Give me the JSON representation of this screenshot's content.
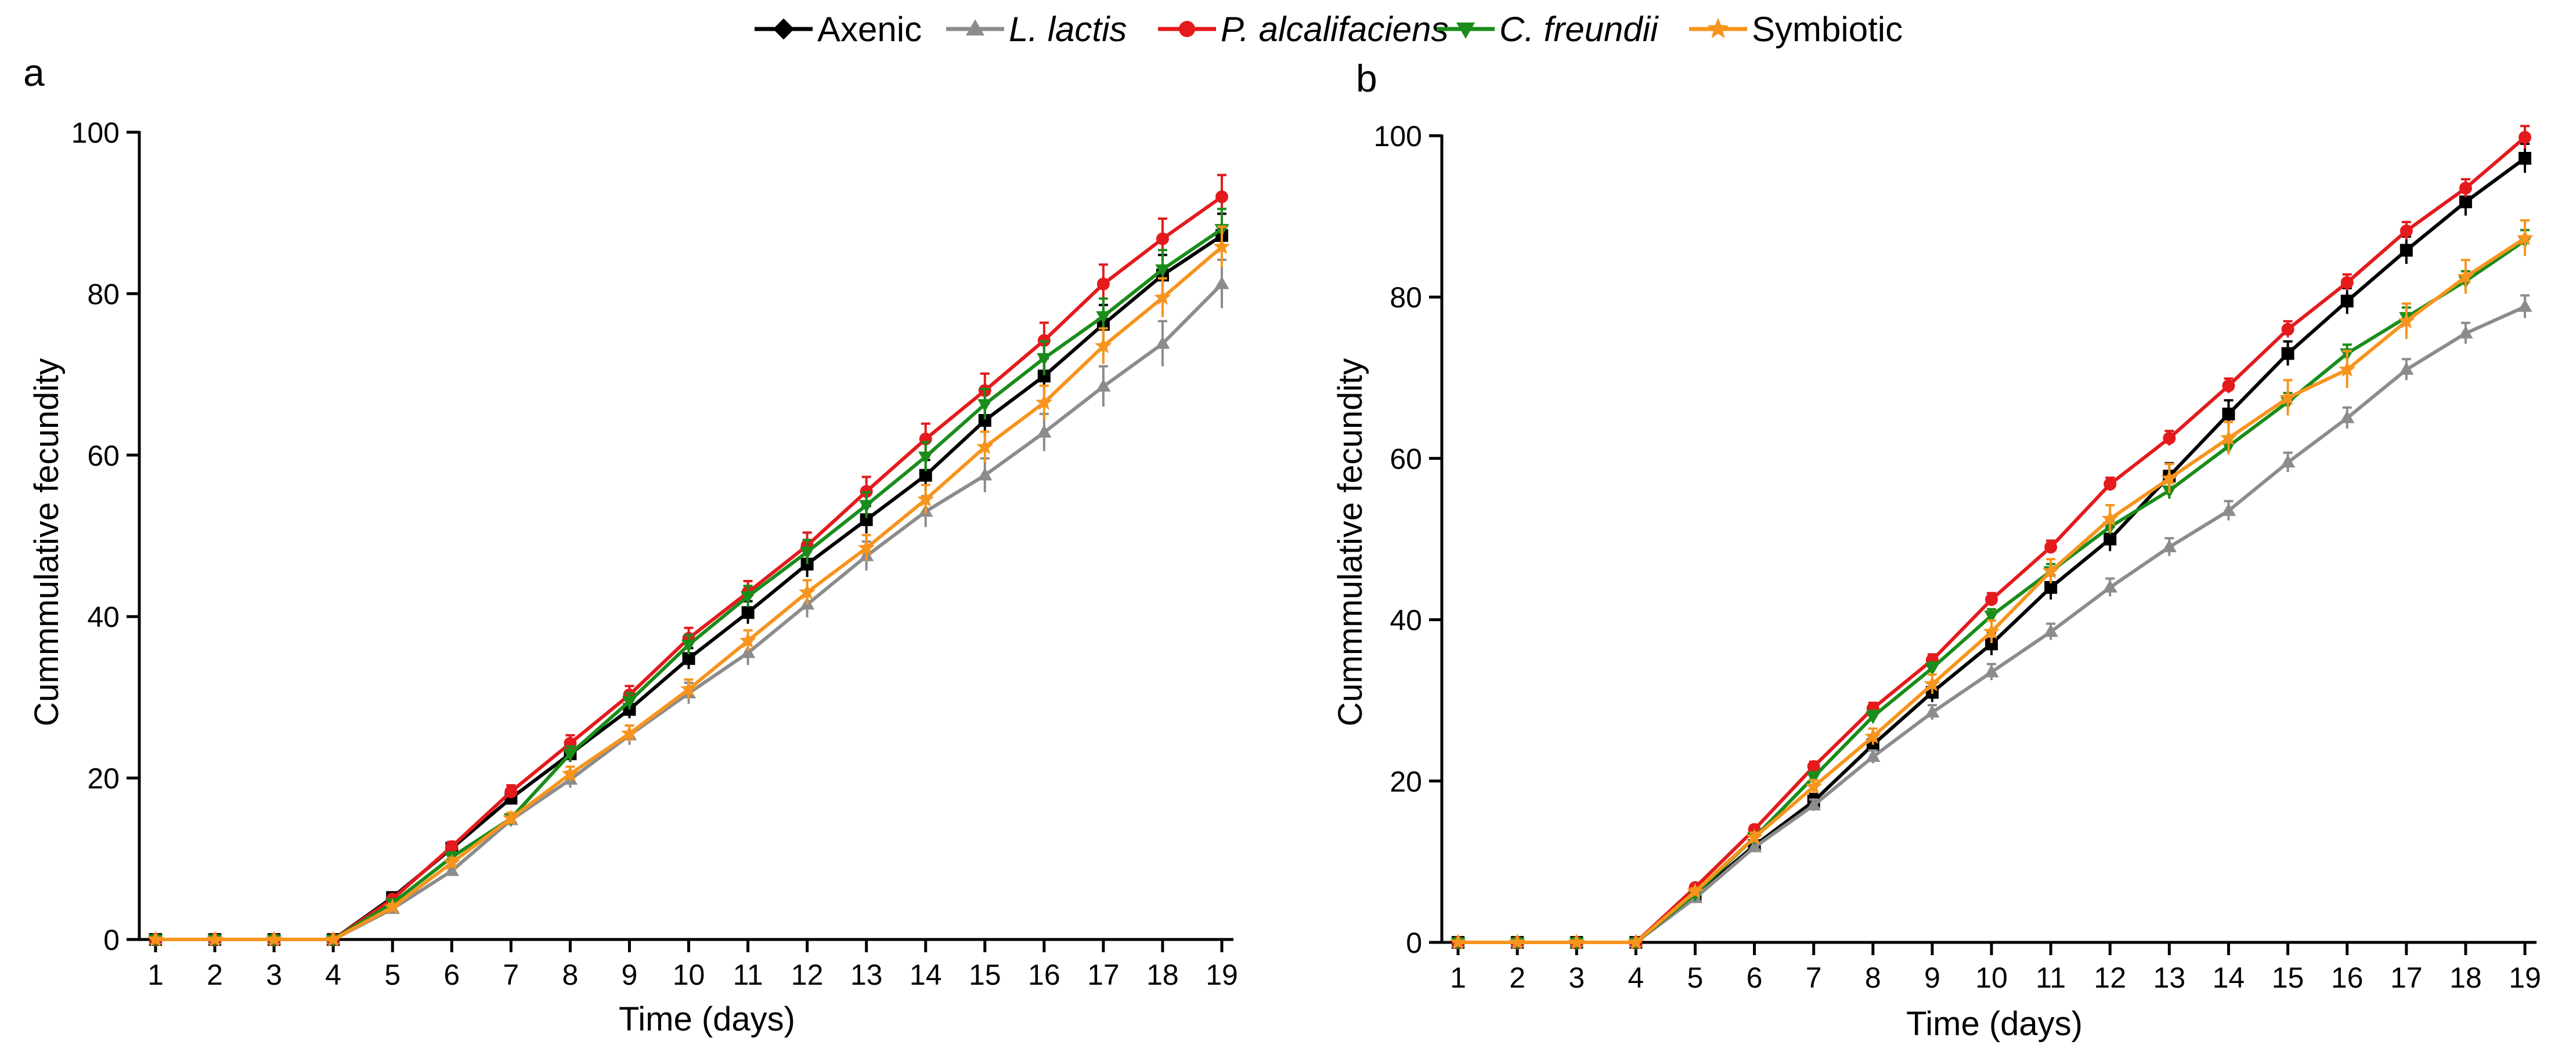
{
  "legend": [
    {
      "label": "Axenic",
      "italic": false
    },
    {
      "label": "L. lactis",
      "italic": true
    },
    {
      "label": "P. alcalifaciens",
      "italic": true
    },
    {
      "label": "C. freundii",
      "italic": true
    },
    {
      "label": "Symbiotic",
      "italic": false
    }
  ],
  "chart_data": [
    {
      "type": "line",
      "panel": "a",
      "xlabel": "Time (days)",
      "ylabel": "Cummmulative fecundity",
      "x": [
        1,
        2,
        3,
        4,
        5,
        6,
        7,
        8,
        9,
        10,
        11,
        12,
        13,
        14,
        15,
        16,
        17,
        18,
        19
      ],
      "xlim": [
        1,
        19
      ],
      "ylim": [
        0,
        100
      ],
      "yticks": [
        0,
        20,
        40,
        60,
        80,
        100
      ],
      "grid": false,
      "legend_position": "top-center",
      "series": [
        {
          "name": "Axenic",
          "color": "#000000",
          "marker": "square",
          "values": [
            0,
            0,
            0,
            0,
            5.2,
            11.3,
            17.5,
            23.0,
            28.5,
            34.8,
            40.5,
            46.5,
            52.0,
            57.5,
            64.3,
            69.8,
            76.2,
            82.3,
            87.2
          ],
          "errors": [
            0,
            0,
            0,
            0,
            0.4,
            0.6,
            0.8,
            1.0,
            1.1,
            1.3,
            1.4,
            1.6,
            1.7,
            1.9,
            2.1,
            2.2,
            2.4,
            2.5,
            2.7
          ]
        },
        {
          "name": "L. lactis",
          "color": "#8c8c8c",
          "marker": "triangle-up",
          "values": [
            0,
            0,
            0,
            0,
            3.8,
            8.5,
            14.8,
            19.8,
            25.3,
            30.5,
            35.5,
            41.5,
            47.5,
            53.0,
            57.5,
            62.8,
            68.5,
            73.8,
            81.2
          ],
          "errors": [
            0,
            0,
            0,
            0,
            0.4,
            0.6,
            0.8,
            1.0,
            1.2,
            1.3,
            1.5,
            1.6,
            1.8,
            1.9,
            2.1,
            2.3,
            2.5,
            2.8,
            3.0
          ]
        },
        {
          "name": "P. alcalifaciens",
          "color": "#e41a1c",
          "marker": "circle",
          "values": [
            0,
            0,
            0,
            0,
            5.0,
            11.5,
            18.3,
            24.3,
            30.3,
            37.3,
            43.0,
            48.8,
            55.5,
            62.0,
            68.0,
            74.2,
            81.2,
            86.8,
            92.0
          ],
          "errors": [
            0,
            0,
            0,
            0,
            0.4,
            0.6,
            0.8,
            1.0,
            1.1,
            1.3,
            1.4,
            1.6,
            1.8,
            1.9,
            2.1,
            2.2,
            2.4,
            2.5,
            2.7
          ]
        },
        {
          "name": "C. freundii",
          "color": "#1a8c1a",
          "marker": "triangle-down",
          "values": [
            0,
            0,
            0,
            0,
            4.5,
            10.2,
            15.0,
            23.0,
            29.5,
            36.5,
            42.5,
            48.0,
            53.8,
            59.8,
            66.3,
            72.0,
            77.2,
            83.0,
            88.0
          ],
          "errors": [
            0,
            0,
            0,
            0,
            0.4,
            0.6,
            0.7,
            0.9,
            1.0,
            1.2,
            1.3,
            1.5,
            1.6,
            1.8,
            1.9,
            2.1,
            2.2,
            2.4,
            2.5
          ]
        },
        {
          "name": "Symbiotic",
          "color": "#f7941d",
          "marker": "star",
          "values": [
            0,
            0,
            0,
            0,
            4.0,
            9.5,
            15.0,
            20.5,
            25.5,
            31.0,
            37.0,
            43.0,
            48.5,
            54.5,
            61.0,
            66.5,
            73.5,
            79.5,
            85.8
          ],
          "errors": [
            0,
            0,
            0,
            0,
            0.4,
            0.6,
            0.7,
            0.9,
            1.0,
            1.2,
            1.3,
            1.5,
            1.6,
            1.8,
            1.9,
            2.1,
            2.2,
            2.4,
            2.5
          ]
        }
      ]
    },
    {
      "type": "line",
      "panel": "b",
      "xlabel": "Time (days)",
      "ylabel": "Cummmulative fecundity",
      "x": [
        1,
        2,
        3,
        4,
        5,
        6,
        7,
        8,
        9,
        10,
        11,
        12,
        13,
        14,
        15,
        16,
        17,
        18,
        19
      ],
      "xlim": [
        1,
        19
      ],
      "ylim": [
        0,
        100
      ],
      "yticks": [
        0,
        20,
        40,
        60,
        80,
        100
      ],
      "grid": false,
      "legend_position": "top-center",
      "series": [
        {
          "name": "Axenic",
          "color": "#000000",
          "marker": "square",
          "values": [
            0,
            0,
            0,
            0,
            5.8,
            12.0,
            17.5,
            24.5,
            31.0,
            37.0,
            44.0,
            50.0,
            57.8,
            65.5,
            73.0,
            79.5,
            85.8,
            91.8,
            97.2
          ],
          "errors": [
            0,
            0,
            0,
            0,
            0.4,
            0.6,
            0.9,
            1.0,
            1.2,
            1.4,
            1.5,
            1.5,
            1.6,
            1.7,
            1.5,
            1.6,
            1.7,
            1.7,
            1.8
          ]
        },
        {
          "name": "L. lactis",
          "color": "#8c8c8c",
          "marker": "triangle-up",
          "values": [
            0,
            0,
            0,
            0,
            5.5,
            11.8,
            17.0,
            23.0,
            28.5,
            33.5,
            38.5,
            44.0,
            49.0,
            53.5,
            59.5,
            65.0,
            71.0,
            75.5,
            78.8
          ],
          "errors": [
            0,
            0,
            0,
            0,
            0.4,
            0.6,
            0.7,
            0.8,
            0.9,
            1.0,
            1.0,
            1.1,
            1.1,
            1.2,
            1.2,
            1.3,
            1.3,
            1.3,
            1.4
          ]
        },
        {
          "name": "P. alcalifaciens",
          "color": "#e41a1c",
          "marker": "circle",
          "values": [
            0,
            0,
            0,
            0,
            6.8,
            14.0,
            21.8,
            29.0,
            35.0,
            42.5,
            49.0,
            56.8,
            62.5,
            69.0,
            76.0,
            81.8,
            88.2,
            93.5,
            99.8
          ],
          "errors": [
            0,
            0,
            0,
            0,
            0.4,
            0.5,
            0.6,
            0.7,
            0.7,
            0.8,
            0.8,
            0.8,
            0.9,
            0.9,
            1.0,
            1.0,
            1.1,
            1.1,
            1.4
          ]
        },
        {
          "name": "C. freundii",
          "color": "#1a8c1a",
          "marker": "triangle-down",
          "values": [
            0,
            0,
            0,
            0,
            6.0,
            13.0,
            20.5,
            28.0,
            34.0,
            40.5,
            46.0,
            51.5,
            56.0,
            61.5,
            67.0,
            73.0,
            77.5,
            82.0,
            87.0
          ],
          "errors": [
            0,
            0,
            0,
            0,
            0.4,
            0.5,
            0.6,
            0.7,
            0.7,
            0.8,
            0.9,
            0.9,
            1.0,
            1.0,
            1.1,
            1.1,
            1.2,
            1.2,
            1.3
          ]
        },
        {
          "name": "Symbiotic",
          "color": "#f7941d",
          "marker": "star",
          "values": [
            0,
            0,
            0,
            0,
            6.3,
            13.0,
            19.3,
            25.5,
            32.0,
            38.5,
            46.0,
            52.5,
            57.5,
            62.5,
            67.5,
            71.0,
            77.0,
            82.5,
            87.3
          ],
          "errors": [
            0,
            0,
            0,
            0,
            0.4,
            0.6,
            0.8,
            1.0,
            1.2,
            1.4,
            1.5,
            1.7,
            1.8,
            2.0,
            2.2,
            2.3,
            2.2,
            2.1,
            2.2
          ]
        }
      ]
    }
  ],
  "panels": [
    {
      "letter": "a"
    },
    {
      "letter": "b"
    }
  ]
}
